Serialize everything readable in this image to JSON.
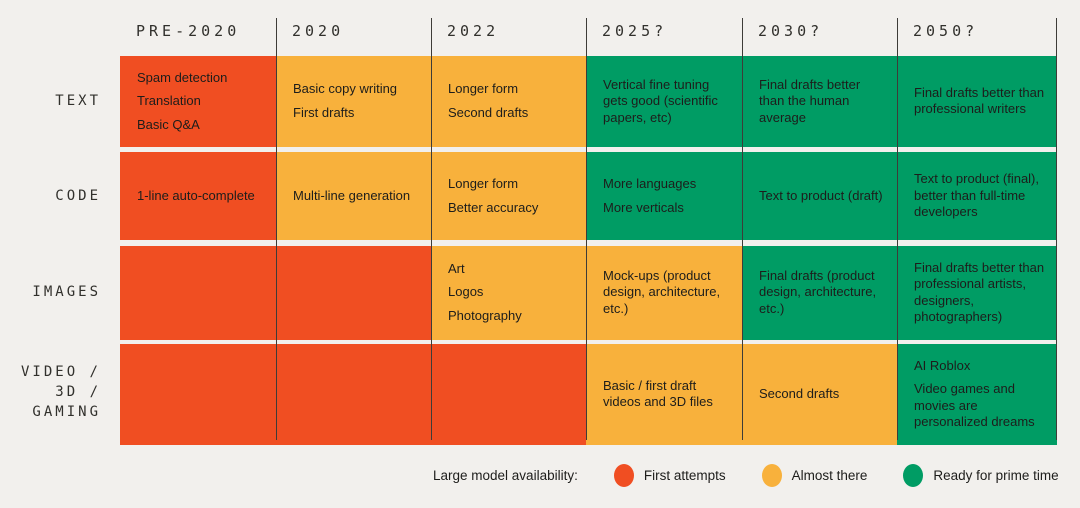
{
  "palette": {
    "background": "#F2F0ED",
    "first_attempts": "#F04E22",
    "almost_there": "#F8B13C",
    "ready_for_prime_time": "#009C64",
    "divider_line": "#3E3C38",
    "text_dark": "#1D1D1B",
    "label_text": "#31302C"
  },
  "chart_data": {
    "type": "table",
    "title": "",
    "legend_title": "Large model availability:",
    "legend_position": "bottom",
    "columns": [
      "PRE-2020",
      "2020",
      "2022",
      "2025?",
      "2030?",
      "2050?"
    ],
    "statuses": {
      "first_attempts": {
        "label": "First attempts",
        "color": "#F04E22"
      },
      "almost_there": {
        "label": "Almost there",
        "color": "#F8B13C"
      },
      "ready": {
        "label": "Ready for prime time",
        "color": "#009C64"
      }
    },
    "legend": [
      {
        "status": "first_attempts",
        "label": "First attempts",
        "color": "#F04E22"
      },
      {
        "status": "almost_there",
        "label": "Almost there",
        "color": "#F8B13C"
      },
      {
        "status": "ready",
        "label": "Ready for prime time",
        "color": "#009C64"
      }
    ],
    "rows": [
      {
        "label": "TEXT",
        "label_lines": [
          "TEXT"
        ],
        "cells": [
          {
            "column": "PRE-2020",
            "status": "first_attempts",
            "items": [
              "Spam detection",
              "Translation",
              "Basic Q&A"
            ]
          },
          {
            "column": "2020",
            "status": "almost_there",
            "items": [
              "Basic copy writing",
              "First drafts"
            ]
          },
          {
            "column": "2022",
            "status": "almost_there",
            "items": [
              "Longer form",
              "Second drafts"
            ]
          },
          {
            "column": "2025?",
            "status": "ready",
            "items": [
              "Vertical fine tuning gets good (scientific papers, etc)"
            ]
          },
          {
            "column": "2030?",
            "status": "ready",
            "items": [
              "Final drafts better than the human average"
            ]
          },
          {
            "column": "2050?",
            "status": "ready",
            "items": [
              "Final drafts better than professional writers"
            ]
          }
        ]
      },
      {
        "label": "CODE",
        "label_lines": [
          "CODE"
        ],
        "cells": [
          {
            "column": "PRE-2020",
            "status": "first_attempts",
            "items": [
              "1-line auto-complete"
            ]
          },
          {
            "column": "2020",
            "status": "almost_there",
            "items": [
              "Multi-line generation"
            ]
          },
          {
            "column": "2022",
            "status": "almost_there",
            "items": [
              "Longer form",
              "Better accuracy"
            ]
          },
          {
            "column": "2025?",
            "status": "ready",
            "items": [
              "More languages",
              "More verticals"
            ]
          },
          {
            "column": "2030?",
            "status": "ready",
            "items": [
              "Text to product (draft)"
            ]
          },
          {
            "column": "2050?",
            "status": "ready",
            "items": [
              "Text to product (final), better than full-time developers"
            ]
          }
        ]
      },
      {
        "label": "IMAGES",
        "label_lines": [
          "IMAGES"
        ],
        "cells": [
          {
            "column": "PRE-2020",
            "status": "first_attempts",
            "items": []
          },
          {
            "column": "2020",
            "status": "first_attempts",
            "items": []
          },
          {
            "column": "2022",
            "status": "almost_there",
            "items": [
              "Art",
              "Logos",
              "Photography"
            ]
          },
          {
            "column": "2025?",
            "status": "almost_there",
            "items": [
              "Mock-ups (product design, architecture, etc.)"
            ]
          },
          {
            "column": "2030?",
            "status": "ready",
            "items": [
              "Final drafts (product design, architecture, etc.)"
            ]
          },
          {
            "column": "2050?",
            "status": "ready",
            "items": [
              "Final drafts better than professional artists, designers, photographers)"
            ]
          }
        ]
      },
      {
        "label": "VIDEO / 3D / GAMING",
        "label_lines": [
          "VIDEO /",
          "3D /",
          "GAMING"
        ],
        "cells": [
          {
            "column": "PRE-2020",
            "status": "first_attempts",
            "items": []
          },
          {
            "column": "2020",
            "status": "first_attempts",
            "items": []
          },
          {
            "column": "2022",
            "status": "first_attempts",
            "items": []
          },
          {
            "column": "2025?",
            "status": "almost_there",
            "items": [
              "Basic / first draft videos and 3D files"
            ]
          },
          {
            "column": "2030?",
            "status": "almost_there",
            "items": [
              "Second drafts"
            ]
          },
          {
            "column": "2050?",
            "status": "ready",
            "items": [
              "AI Roblox",
              "Video games and movies are personalized dreams"
            ]
          }
        ]
      }
    ]
  }
}
